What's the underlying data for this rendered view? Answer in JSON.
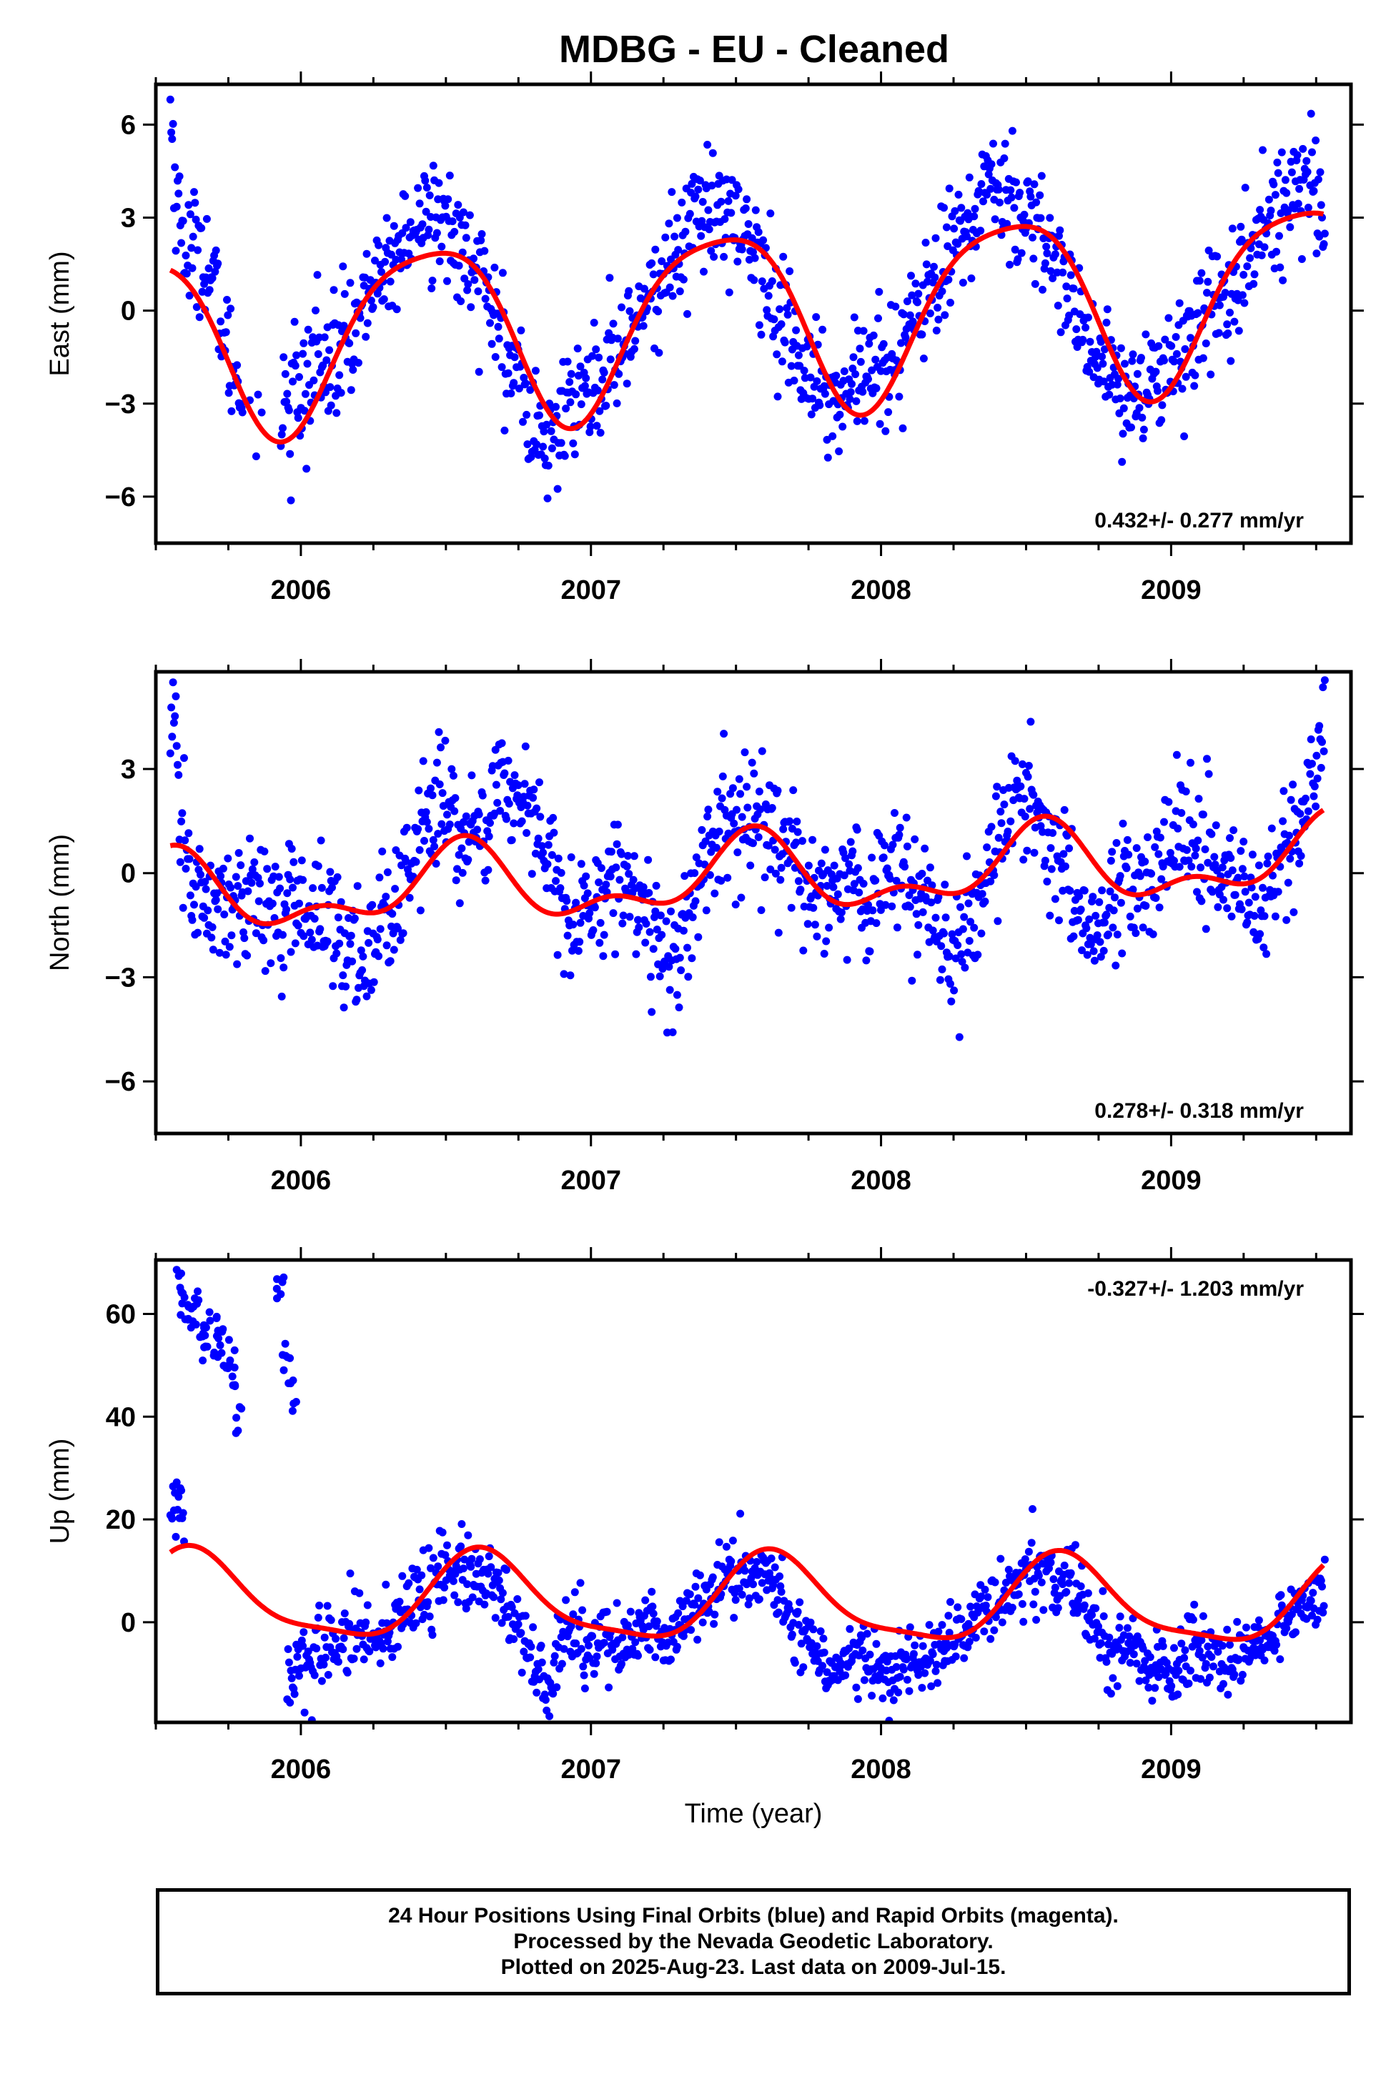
{
  "title": "MDBG  - EU - Cleaned",
  "footer": {
    "line1": "24 Hour Positions Using Final Orbits (blue) and Rapid Orbits (magenta).",
    "line2": "Processed by the Nevada Geodetic Laboratory.",
    "line3": "Plotted on 2025-Aug-23. Last data on 2009-Jul-15."
  },
  "colors": {
    "points": "#0000ff",
    "model": "#ff0000",
    "frame": "#000000"
  },
  "chart_data": [
    {
      "type": "scatter",
      "ylabel": "East (mm)",
      "xlabel": "",
      "xlim": [
        2005.5,
        2009.62
      ],
      "ylim": [
        -7.5,
        7.3
      ],
      "xticks": [
        2006,
        2007,
        2008,
        2009
      ],
      "yticks": [
        -6,
        -3,
        0,
        3,
        6
      ],
      "rate": "0.432+/- 0.277 mm/yr",
      "rate_position": "bottom-right",
      "model": {
        "offset": -0.12,
        "rate": 0.432,
        "annual_amp": 2.9,
        "annual_peak": 0.44,
        "semi_amp": 0.55,
        "semi_peak": 0.17
      },
      "noise": 0.95,
      "x": [
        2005.55,
        2005.57,
        2005.59,
        2005.62,
        2005.65,
        2005.7,
        2005.75,
        2005.8,
        2005.85,
        2005.9,
        2005.95,
        2006.0,
        2006.05,
        2006.1,
        2006.15,
        2006.2,
        2006.25,
        2006.3,
        2006.35,
        2006.4,
        2006.45,
        2006.5,
        2006.55,
        2006.6,
        2006.65,
        2006.7,
        2006.75,
        2006.8,
        2006.83,
        2006.85,
        2006.9,
        2006.95,
        2007.0,
        2007.05,
        2007.1,
        2007.15,
        2007.2,
        2007.25,
        2007.3,
        2007.35,
        2007.4,
        2007.45,
        2007.5,
        2007.55,
        2007.6,
        2007.65,
        2007.7,
        2007.75,
        2007.8,
        2007.85,
        2007.9,
        2007.95,
        2008.0,
        2008.05,
        2008.1,
        2008.15,
        2008.2,
        2008.25,
        2008.3,
        2008.35,
        2008.4,
        2008.45,
        2008.5,
        2008.55,
        2008.6,
        2008.65,
        2008.7,
        2008.75,
        2008.8,
        2008.85,
        2008.9,
        2008.95,
        2009.0,
        2009.05,
        2009.1,
        2009.15,
        2009.2,
        2009.25,
        2009.3,
        2009.35,
        2009.4,
        2009.45,
        2009.5,
        2009.53
      ],
      "y": [
        6.6,
        3.8,
        2.5,
        1.8,
        2.2,
        0.8,
        -1.5,
        -2.6,
        -3.3,
        -3.9,
        -3.5,
        -2.8,
        -2.0,
        -1.8,
        -1.2,
        -0.2,
        0.8,
        1.5,
        2.0,
        2.6,
        3.0,
        2.9,
        2.3,
        1.6,
        0.3,
        -1.2,
        -2.4,
        -3.2,
        -3.5,
        -4.8,
        -3.2,
        -2.7,
        -2.5,
        -2.0,
        -1.4,
        -0.5,
        0.2,
        1.0,
        2.0,
        2.8,
        3.3,
        3.5,
        2.8,
        2.2,
        1.0,
        -0.3,
        -1.2,
        -2.0,
        -2.4,
        -3.0,
        -2.6,
        -2.2,
        -1.6,
        -1.4,
        -0.6,
        0.1,
        1.2,
        2.4,
        3.0,
        3.5,
        4.0,
        3.8,
        3.2,
        2.8,
        1.6,
        0.6,
        -0.8,
        -1.6,
        -2.2,
        -2.5,
        -2.7,
        -2.4,
        -1.7,
        -0.8,
        -0.4,
        0.2,
        0.7,
        1.5,
        2.3,
        3.1,
        4.0,
        4.5,
        4.2,
        2.0
      ]
    },
    {
      "type": "scatter",
      "ylabel": "North (mm)",
      "xlabel": "",
      "xlim": [
        2005.5,
        2009.62
      ],
      "ylim": [
        -7.5,
        5.8
      ],
      "xticks": [
        2006,
        2007,
        2008,
        2009
      ],
      "yticks": [
        -6,
        -3,
        0,
        3
      ],
      "rate": "0.278+/- 0.318 mm/yr",
      "rate_position": "bottom-right",
      "model": {
        "offset": -0.15,
        "rate": 0.278,
        "annual_amp": 0.95,
        "annual_peak": 0.55,
        "semi_amp": 0.55,
        "semi_peak": 0.07
      },
      "noise": 0.9,
      "x": [
        2005.55,
        2005.57,
        2005.6,
        2005.65,
        2005.7,
        2005.75,
        2005.8,
        2005.85,
        2005.9,
        2005.95,
        2006.0,
        2006.05,
        2006.1,
        2006.15,
        2006.2,
        2006.25,
        2006.3,
        2006.35,
        2006.4,
        2006.45,
        2006.5,
        2006.55,
        2006.6,
        2006.65,
        2006.7,
        2006.75,
        2006.8,
        2006.85,
        2006.9,
        2006.95,
        2007.0,
        2007.05,
        2007.1,
        2007.15,
        2007.2,
        2007.25,
        2007.3,
        2007.35,
        2007.4,
        2007.45,
        2007.5,
        2007.55,
        2007.6,
        2007.65,
        2007.7,
        2007.75,
        2007.8,
        2007.85,
        2007.9,
        2007.95,
        2008.0,
        2008.05,
        2008.1,
        2008.15,
        2008.2,
        2008.25,
        2008.3,
        2008.35,
        2008.4,
        2008.45,
        2008.5,
        2008.55,
        2008.6,
        2008.65,
        2008.7,
        2008.75,
        2008.8,
        2008.85,
        2008.9,
        2008.95,
        2009.0,
        2009.05,
        2009.1,
        2009.15,
        2009.2,
        2009.25,
        2009.3,
        2009.35,
        2009.4,
        2009.45,
        2009.5,
        2009.53
      ],
      "y": [
        4.5,
        3.0,
        0.5,
        -0.8,
        -1.2,
        -1.0,
        -0.6,
        -0.9,
        -1.2,
        -1.0,
        -0.8,
        -1.0,
        -1.4,
        -2.0,
        -2.5,
        -1.8,
        -1.2,
        -0.4,
        0.8,
        1.6,
        2.2,
        1.2,
        0.6,
        1.8,
        2.6,
        2.2,
        1.5,
        0.4,
        -0.8,
        -1.4,
        -0.8,
        -0.4,
        0.2,
        -0.6,
        -1.2,
        -2.4,
        -2.8,
        -0.4,
        0.5,
        1.0,
        1.4,
        1.6,
        1.2,
        0.6,
        0.2,
        -0.2,
        -0.6,
        -0.4,
        0.1,
        -0.8,
        -0.2,
        0.2,
        -0.4,
        -1.0,
        -1.6,
        -2.8,
        -1.5,
        -0.6,
        0.8,
        1.8,
        2.4,
        1.6,
        0.2,
        -0.6,
        -1.2,
        -1.6,
        -0.8,
        -0.2,
        -1.0,
        0.2,
        0.8,
        1.4,
        1.0,
        0.4,
        -0.4,
        -0.8,
        -1.2,
        -0.2,
        0.6,
        1.6,
        3.2,
        4.0
      ]
    },
    {
      "type": "scatter",
      "ylabel": "Up (mm)",
      "xlabel": "Time (year)",
      "xlim": [
        2005.5,
        2009.62
      ],
      "ylim": [
        -19.5,
        70.5
      ],
      "xticks": [
        2006,
        2007,
        2008,
        2009
      ],
      "yticks": [
        0,
        20,
        40,
        60
      ],
      "rate": "-0.327+/- 1.203 mm/yr",
      "rate_position": "top-right",
      "model": {
        "offset": 4.0,
        "rate": -0.327,
        "annual_amp": 8.2,
        "annual_peak": 0.63,
        "semi_amp": 2.2,
        "semi_peak": 0.1
      },
      "noise": 3.5,
      "outliers_x": [
        2005.58,
        2005.6,
        2005.62,
        2005.64,
        2005.66,
        2005.68,
        2005.7,
        2005.72,
        2005.74,
        2005.76,
        2005.78,
        2005.93,
        2005.95,
        2005.97
      ],
      "outliers_y": [
        64,
        62,
        58,
        60,
        57,
        56,
        54,
        55,
        52,
        50,
        41,
        67,
        52,
        45
      ],
      "x": [
        2005.55,
        2005.57,
        2005.59,
        2005.95,
        2006.0,
        2006.05,
        2006.1,
        2006.15,
        2006.2,
        2006.25,
        2006.3,
        2006.35,
        2006.4,
        2006.45,
        2006.5,
        2006.55,
        2006.6,
        2006.65,
        2006.7,
        2006.75,
        2006.8,
        2006.85,
        2006.9,
        2006.95,
        2007.0,
        2007.05,
        2007.1,
        2007.15,
        2007.2,
        2007.25,
        2007.3,
        2007.35,
        2007.4,
        2007.45,
        2007.5,
        2007.55,
        2007.6,
        2007.65,
        2007.7,
        2007.75,
        2007.8,
        2007.85,
        2007.9,
        2007.95,
        2008.0,
        2008.05,
        2008.1,
        2008.15,
        2008.2,
        2008.25,
        2008.3,
        2008.35,
        2008.4,
        2008.45,
        2008.5,
        2008.55,
        2008.6,
        2008.65,
        2008.7,
        2008.75,
        2008.8,
        2008.85,
        2008.9,
        2008.95,
        2009.0,
        2009.05,
        2009.1,
        2009.15,
        2009.2,
        2009.25,
        2009.3,
        2009.35,
        2009.4,
        2009.45,
        2009.5,
        2009.53
      ],
      "y": [
        18,
        24,
        20,
        -12,
        -8,
        -6,
        -4,
        -3,
        -2,
        -3,
        -1,
        2,
        4,
        7,
        9,
        11,
        10,
        9,
        4,
        -2,
        -8,
        -12,
        -4,
        -2,
        -6,
        -4,
        -8,
        -2,
        0,
        -4,
        -2,
        2,
        5,
        8,
        10,
        9,
        10,
        4,
        -1,
        -4,
        -8,
        -10,
        -6,
        -8,
        -12,
        -10,
        -8,
        -6,
        -6,
        -2,
        0,
        2,
        4,
        6,
        10,
        12,
        9,
        8,
        4,
        -2,
        -6,
        -4,
        -6,
        -8,
        -10,
        -6,
        -4,
        -6,
        -10,
        -6,
        -4,
        -2,
        0,
        2,
        4,
        6
      ]
    }
  ]
}
